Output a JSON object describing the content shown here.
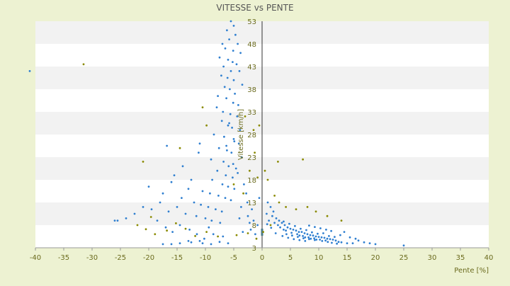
{
  "chart_data": {
    "type": "scatter",
    "title": "VITESSE vs PENTE",
    "xlabel": "Pente [%]",
    "ylabel": "Vitesse [km/h]",
    "xlim": [
      -40,
      40
    ],
    "ylim": [
      3,
      53
    ],
    "xticks": [
      -40,
      -35,
      -30,
      -25,
      -20,
      -15,
      -10,
      -5,
      0,
      5,
      10,
      15,
      20,
      25,
      30,
      35,
      40
    ],
    "yticks": [
      3,
      8,
      13,
      18,
      23,
      28,
      33,
      38,
      43,
      48,
      53
    ],
    "grid": "alternating horizontal bands",
    "legend": "none",
    "colors": {
      "background": "#edf2d2",
      "plot_band_light": "#ffffff",
      "plot_band_dark": "#f2f2f2",
      "series_main": "#2f7fd0",
      "series_secondary": "#8a8a00",
      "axis_text": "#6b6b1e",
      "title_text": "#555555"
    },
    "series": [
      {
        "color": "#2f7fd0",
        "points": [
          [
            -5.5,
            53
          ],
          [
            -5.0,
            52
          ],
          [
            -6.2,
            51
          ],
          [
            -4.7,
            50
          ],
          [
            -5.8,
            49
          ],
          [
            -7.0,
            48
          ],
          [
            -4.3,
            48
          ],
          [
            -6.5,
            47
          ],
          [
            -5.1,
            46.5
          ],
          [
            -3.8,
            46
          ],
          [
            -7.5,
            45
          ],
          [
            -6.0,
            44.5
          ],
          [
            -5.2,
            44
          ],
          [
            -4.5,
            43.5
          ],
          [
            -6.8,
            43
          ],
          [
            -5.5,
            42
          ],
          [
            -4.0,
            42
          ],
          [
            -7.2,
            41
          ],
          [
            -6.1,
            40.5
          ],
          [
            -5.0,
            40
          ],
          [
            -3.5,
            39
          ],
          [
            -6.6,
            38.5
          ],
          [
            -5.7,
            38
          ],
          [
            -4.8,
            37
          ],
          [
            -7.8,
            36.5
          ],
          [
            -6.3,
            36
          ],
          [
            -5.1,
            35
          ],
          [
            -4.2,
            34.5
          ],
          [
            -8.0,
            34
          ],
          [
            -6.9,
            33
          ],
          [
            -5.6,
            32.5
          ],
          [
            -4.4,
            32
          ],
          [
            -7.1,
            31
          ],
          [
            -6.0,
            30
          ],
          [
            -5.3,
            29.5
          ],
          [
            -3.9,
            29
          ],
          [
            -8.5,
            28
          ],
          [
            -6.7,
            27.5
          ],
          [
            -5.0,
            27
          ],
          [
            -4.1,
            26
          ],
          [
            -7.6,
            25
          ],
          [
            -6.2,
            24.5
          ],
          [
            -5.4,
            24
          ],
          [
            -3.6,
            23
          ],
          [
            -9.0,
            22.5
          ],
          [
            -6.8,
            22
          ],
          [
            -5.9,
            21
          ],
          [
            -4.6,
            20.5
          ],
          [
            -7.9,
            20
          ],
          [
            -6.4,
            19
          ],
          [
            -5.2,
            18.5
          ],
          [
            -8.8,
            18
          ],
          [
            -7.0,
            17
          ],
          [
            -6.0,
            16.5
          ],
          [
            -4.9,
            16
          ],
          [
            -10.5,
            15.5
          ],
          [
            -9.2,
            15
          ],
          [
            -7.7,
            14.5
          ],
          [
            -6.5,
            14
          ],
          [
            -5.5,
            13.5
          ],
          [
            -12.0,
            13
          ],
          [
            -10.8,
            12.5
          ],
          [
            -9.5,
            12
          ],
          [
            -8.2,
            11.5
          ],
          [
            -7.1,
            11
          ],
          [
            -13.5,
            10.5
          ],
          [
            -11.6,
            10
          ],
          [
            -10.0,
            9.5
          ],
          [
            -8.9,
            9
          ],
          [
            -7.4,
            8.5
          ],
          [
            -15.0,
            12
          ],
          [
            -16.5,
            11
          ],
          [
            -18.0,
            13
          ],
          [
            -19.5,
            11.5
          ],
          [
            -21.0,
            12
          ],
          [
            -22.5,
            10.5
          ],
          [
            -24.0,
            9.5
          ],
          [
            -25.5,
            9
          ],
          [
            -26.0,
            9
          ],
          [
            -20.0,
            16.5
          ],
          [
            -17.5,
            15
          ],
          [
            -14.2,
            14
          ],
          [
            -13.0,
            16
          ],
          [
            -16.0,
            17.5
          ],
          [
            -15.5,
            19
          ],
          [
            -14.0,
            21
          ],
          [
            -16.8,
            25.5
          ],
          [
            -11.0,
            26
          ],
          [
            -11.2,
            24
          ],
          [
            -12.5,
            18
          ],
          [
            -18.5,
            9
          ],
          [
            -17.0,
            7.5
          ],
          [
            -15.8,
            6.5
          ],
          [
            -14.5,
            8
          ],
          [
            -12.8,
            7
          ],
          [
            -11.5,
            6
          ],
          [
            -10.2,
            5
          ],
          [
            -9.4,
            7.5
          ],
          [
            -8.6,
            6
          ],
          [
            -6.9,
            5.5
          ],
          [
            -17.5,
            3.8
          ],
          [
            -16.0,
            3.8
          ],
          [
            -14.5,
            4.0
          ],
          [
            -12.5,
            4.2
          ],
          [
            -10.5,
            4.0
          ],
          [
            -9.0,
            3.8
          ],
          [
            -7.5,
            4.3
          ],
          [
            -6.0,
            4.0
          ],
          [
            -13.0,
            4.5
          ],
          [
            -11.0,
            4.5
          ],
          [
            -41.0,
            42
          ],
          [
            -5.8,
            30.5
          ],
          [
            -4.9,
            26.5
          ],
          [
            -6.3,
            25.5
          ],
          [
            -5.1,
            21.5
          ],
          [
            -4.3,
            19.5
          ],
          [
            -3.2,
            17
          ],
          [
            -2.8,
            15
          ],
          [
            -3.7,
            12
          ],
          [
            -2.5,
            10
          ],
          [
            -1.5,
            9
          ],
          [
            -0.8,
            8
          ],
          [
            -2.0,
            7
          ],
          [
            -3.4,
            6.5
          ],
          [
            -1.2,
            6
          ],
          [
            -0.5,
            14
          ],
          [
            -1.8,
            11.5
          ],
          [
            -2.6,
            13
          ],
          [
            -4.0,
            9.5
          ],
          [
            -2.2,
            8.5
          ],
          [
            1.0,
            13
          ],
          [
            1.5,
            12
          ],
          [
            2.0,
            11
          ],
          [
            0.8,
            10.5
          ],
          [
            1.8,
            10
          ],
          [
            2.5,
            9.5
          ],
          [
            3.0,
            9
          ],
          [
            1.2,
            9
          ],
          [
            2.2,
            8.5
          ],
          [
            3.5,
            8.5
          ],
          [
            4.0,
            8
          ],
          [
            2.8,
            8
          ],
          [
            4.5,
            7.5
          ],
          [
            3.2,
            7.5
          ],
          [
            5.0,
            7.2
          ],
          [
            3.8,
            7
          ],
          [
            5.5,
            7
          ],
          [
            6.0,
            6.8
          ],
          [
            4.2,
            6.8
          ],
          [
            6.5,
            6.5
          ],
          [
            7.0,
            6.5
          ],
          [
            5.2,
            6.3
          ],
          [
            7.5,
            6.2
          ],
          [
            8.0,
            6
          ],
          [
            6.2,
            6
          ],
          [
            8.5,
            5.8
          ],
          [
            9.0,
            5.7
          ],
          [
            7.2,
            5.6
          ],
          [
            9.5,
            5.5
          ],
          [
            10.0,
            5.4
          ],
          [
            8.2,
            5.3
          ],
          [
            10.5,
            5.3
          ],
          [
            11.0,
            5.2
          ],
          [
            9.2,
            5.1
          ],
          [
            11.5,
            5
          ],
          [
            12.0,
            4.9
          ],
          [
            10.2,
            4.8
          ],
          [
            12.5,
            4.8
          ],
          [
            13.0,
            4.6
          ],
          [
            11.2,
            4.6
          ],
          [
            6.8,
            7.2
          ],
          [
            7.8,
            6.9
          ],
          [
            8.8,
            6.4
          ],
          [
            9.8,
            6.1
          ],
          [
            5.8,
            7.8
          ],
          [
            4.8,
            8.3
          ],
          [
            3.8,
            8.8
          ],
          [
            7.3,
            5.1
          ],
          [
            8.3,
            4.9
          ],
          [
            9.3,
            4.7
          ],
          [
            6.3,
            5.4
          ],
          [
            5.3,
            5.7
          ],
          [
            4.3,
            6.0
          ],
          [
            10.8,
            6.2
          ],
          [
            11.8,
            5.6
          ],
          [
            12.8,
            5.4
          ],
          [
            13.5,
            4.3
          ],
          [
            14.0,
            4.2
          ],
          [
            15.0,
            4.0
          ],
          [
            16.0,
            4.0
          ],
          [
            16.5,
            5.0
          ],
          [
            15.5,
            5.3
          ],
          [
            17.0,
            4.6
          ],
          [
            13.8,
            5.8
          ],
          [
            14.5,
            6.5
          ],
          [
            12.2,
            6.7
          ],
          [
            11.3,
            7.0
          ],
          [
            10.3,
            7.3
          ],
          [
            9.3,
            7.6
          ],
          [
            8.3,
            7.9
          ],
          [
            2.4,
            6.2
          ],
          [
            1.6,
            7.4
          ],
          [
            0.9,
            8.2
          ],
          [
            3.6,
            5.6
          ],
          [
            4.6,
            5.2
          ],
          [
            5.6,
            4.9
          ],
          [
            6.6,
            4.7
          ],
          [
            7.6,
            4.5
          ],
          [
            19.0,
            4.0
          ],
          [
            20.0,
            3.8
          ],
          [
            25.0,
            3.5
          ],
          [
            18.0,
            4.2
          ],
          [
            13.2,
            3.9
          ],
          [
            12.3,
            4.1
          ],
          [
            11.6,
            4.3
          ],
          [
            10.6,
            4.5
          ],
          [
            9.6,
            4.8
          ],
          [
            8.6,
            5.0
          ],
          [
            7.6,
            5.3
          ],
          [
            6.6,
            5.7
          ]
        ]
      },
      {
        "color": "#8a8a00",
        "points": [
          [
            -31.5,
            43.5
          ],
          [
            -21.0,
            22
          ],
          [
            -14.5,
            25
          ],
          [
            -10.5,
            34
          ],
          [
            -9.8,
            30
          ],
          [
            -3.0,
            32
          ],
          [
            -1.5,
            29
          ],
          [
            -0.5,
            30
          ],
          [
            0.5,
            20
          ],
          [
            2.8,
            22
          ],
          [
            7.2,
            22.5
          ],
          [
            1.0,
            18
          ],
          [
            3.0,
            13
          ],
          [
            4.2,
            12
          ],
          [
            6.0,
            11.5
          ],
          [
            8.0,
            12
          ],
          [
            9.5,
            11
          ],
          [
            11.5,
            10
          ],
          [
            14.0,
            9
          ],
          [
            2.2,
            14.5
          ],
          [
            1.5,
            8
          ],
          [
            0.2,
            6.5
          ],
          [
            -1.0,
            5.0
          ],
          [
            -2.5,
            6.2
          ],
          [
            -4.5,
            5.8
          ],
          [
            -7.8,
            5.5
          ],
          [
            -9.8,
            6.5
          ],
          [
            -11.8,
            5.6
          ],
          [
            -13.5,
            7.2
          ],
          [
            -15.2,
            8.4
          ],
          [
            -16.8,
            6.8
          ],
          [
            -18.9,
            6.0
          ],
          [
            -20.5,
            7.1
          ],
          [
            -22.0,
            8.0
          ],
          [
            -19.6,
            9.8
          ],
          [
            -5.0,
            17
          ],
          [
            -3.3,
            15
          ],
          [
            -2.2,
            20
          ],
          [
            -1.3,
            24
          ],
          [
            -0.8,
            18.5
          ]
        ]
      }
    ]
  }
}
